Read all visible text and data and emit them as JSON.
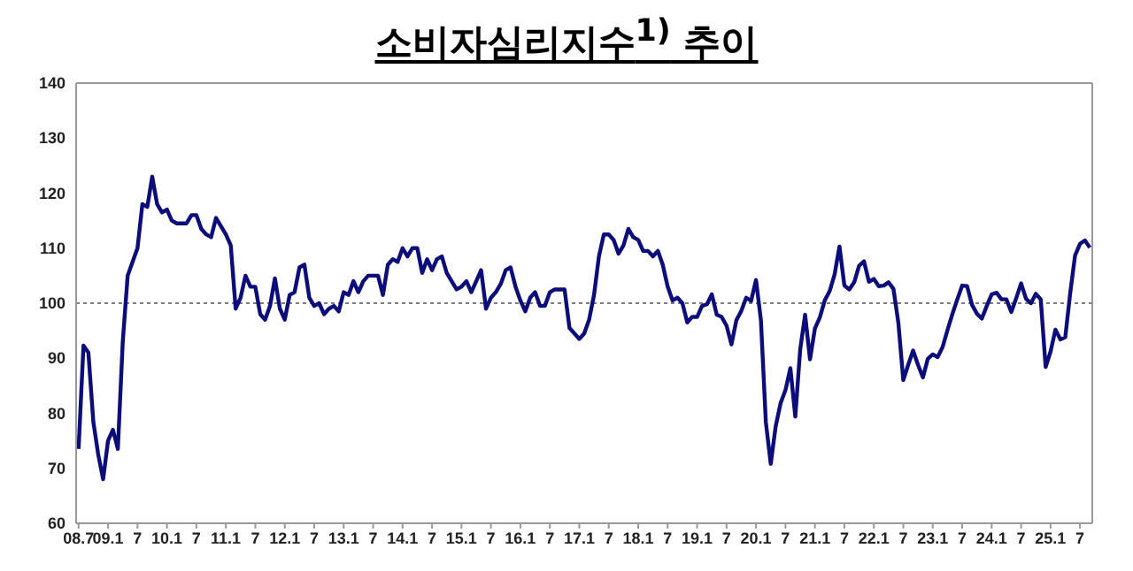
{
  "chart_data": {
    "type": "line",
    "title": "소비자심리지수$^{1)}$ 추이",
    "categories": [
      "08.7",
      null,
      null,
      null,
      null,
      null,
      "09.1",
      null,
      null,
      null,
      null,
      null,
      "7",
      null,
      null,
      null,
      null,
      null,
      "10.1",
      null,
      null,
      null,
      null,
      null,
      "7",
      null,
      null,
      null,
      null,
      null,
      "11.1",
      null,
      null,
      null,
      null,
      null,
      "7",
      null,
      null,
      null,
      null,
      null,
      "12.1",
      null,
      null,
      null,
      null,
      null,
      "7",
      null,
      null,
      null,
      null,
      null,
      "13.1",
      null,
      null,
      null,
      null,
      null,
      "7",
      null,
      null,
      null,
      null,
      null,
      "14.1",
      null,
      null,
      null,
      null,
      null,
      "7",
      null,
      null,
      null,
      null,
      null,
      "15.1",
      null,
      null,
      null,
      null,
      null,
      "7",
      null,
      null,
      null,
      null,
      null,
      "16.1",
      null,
      null,
      null,
      null,
      null,
      "7",
      null,
      null,
      null,
      null,
      null,
      "17.1",
      null,
      null,
      null,
      null,
      null,
      "7",
      null,
      null,
      null,
      null,
      null,
      "18.1",
      null,
      null,
      null,
      null,
      null,
      "7",
      null,
      null,
      null,
      null,
      null,
      "19.1",
      null,
      null,
      null,
      null,
      null,
      "7",
      null,
      null,
      null,
      null,
      null,
      "20.1",
      null,
      null,
      null,
      null,
      null,
      "7",
      null,
      null,
      null,
      null,
      null,
      "21.1",
      null,
      null,
      null,
      null,
      null,
      "7",
      null,
      null,
      null,
      null,
      null,
      "22.1",
      null,
      null,
      null,
      null,
      null,
      "7",
      null,
      null,
      null,
      null,
      null,
      "23.1",
      null,
      null,
      null,
      null,
      null,
      "7",
      null,
      null,
      null,
      null,
      null,
      "24.1",
      null,
      null,
      null,
      null,
      null,
      "7",
      null,
      null,
      null,
      null,
      null,
      "25.1",
      null,
      null,
      null,
      null,
      null,
      "7",
      null,
      null
    ],
    "series": [
      {
        "color": "#0c0c7a",
        "values": [
          73.5,
          92.3,
          91.0,
          78.5,
          72.5,
          68.0,
          75.0,
          77.0,
          73.5,
          93.0,
          105.0,
          107.5,
          110.0,
          118.0,
          117.5,
          123.0,
          118.0,
          116.5,
          117.0,
          115.0,
          114.5,
          114.5,
          114.5,
          116.0,
          116.0,
          113.5,
          112.5,
          112.0,
          115.5,
          114.0,
          112.5,
          110.5,
          99.0,
          101.0,
          105.0,
          103.0,
          103.0,
          98.0,
          97.0,
          99.5,
          104.5,
          99.0,
          97.0,
          101.5,
          102.0,
          106.5,
          107.0,
          101.0,
          99.5,
          100.0,
          98.0,
          99.0,
          99.5,
          98.5,
          102.0,
          101.5,
          104.0,
          102.0,
          104.0,
          105.0,
          105.0,
          105.0,
          101.5,
          107.0,
          108.0,
          107.5,
          110.0,
          108.5,
          110.0,
          110.0,
          105.5,
          108.0,
          106.0,
          108.0,
          108.5,
          105.5,
          104.0,
          102.5,
          103.0,
          104.0,
          102.0,
          104.0,
          106.0,
          99.0,
          101.0,
          102.0,
          103.5,
          106.0,
          106.5,
          103.0,
          100.5,
          98.5,
          101.0,
          102.0,
          99.5,
          99.5,
          102.0,
          102.5,
          102.5,
          102.5,
          95.5,
          94.5,
          93.5,
          94.5,
          97.0,
          101.5,
          108.5,
          112.5,
          112.5,
          111.5,
          109.0,
          110.5,
          113.5,
          112.0,
          111.5,
          109.5,
          109.5,
          108.5,
          109.5,
          107.0,
          103.0,
          100.5,
          101.0,
          100.0,
          96.5,
          97.5,
          97.5,
          99.5,
          99.8,
          101.6,
          97.9,
          97.5,
          95.9,
          92.5,
          96.9,
          98.6,
          101.0,
          100.4,
          104.2,
          96.9,
          78.4,
          70.8,
          77.6,
          81.8,
          84.2,
          88.2,
          79.4,
          91.6,
          97.9,
          89.8,
          95.4,
          97.4,
          100.5,
          102.2,
          105.2,
          110.3,
          103.2,
          102.5,
          103.8,
          106.8,
          107.6,
          103.9,
          104.4,
          103.1,
          103.2,
          103.8,
          102.6,
          96.4,
          86.0,
          88.8,
          91.4,
          88.8,
          86.5,
          89.9,
          90.7,
          90.2,
          92.0,
          95.1,
          98.0,
          100.7,
          103.2,
          103.1,
          99.7,
          98.1,
          97.2,
          99.5,
          101.6,
          101.9,
          100.7,
          100.7,
          98.4,
          100.9,
          103.6,
          100.8,
          100.0,
          101.7,
          100.7,
          88.4,
          91.2,
          95.2,
          93.4,
          93.8,
          101.8,
          108.7,
          110.8,
          111.4,
          110.1
        ]
      }
    ],
    "ylim": [
      60,
      140
    ],
    "yticks": [
      60,
      70,
      80,
      90,
      100,
      110,
      120,
      130,
      140
    ],
    "ref_lines": [
      {
        "axis": "y",
        "value": 100,
        "color": "#555555",
        "line_style": "dotted"
      }
    ],
    "grid": false,
    "legend": false,
    "marker": "none",
    "line_style": "solid"
  }
}
